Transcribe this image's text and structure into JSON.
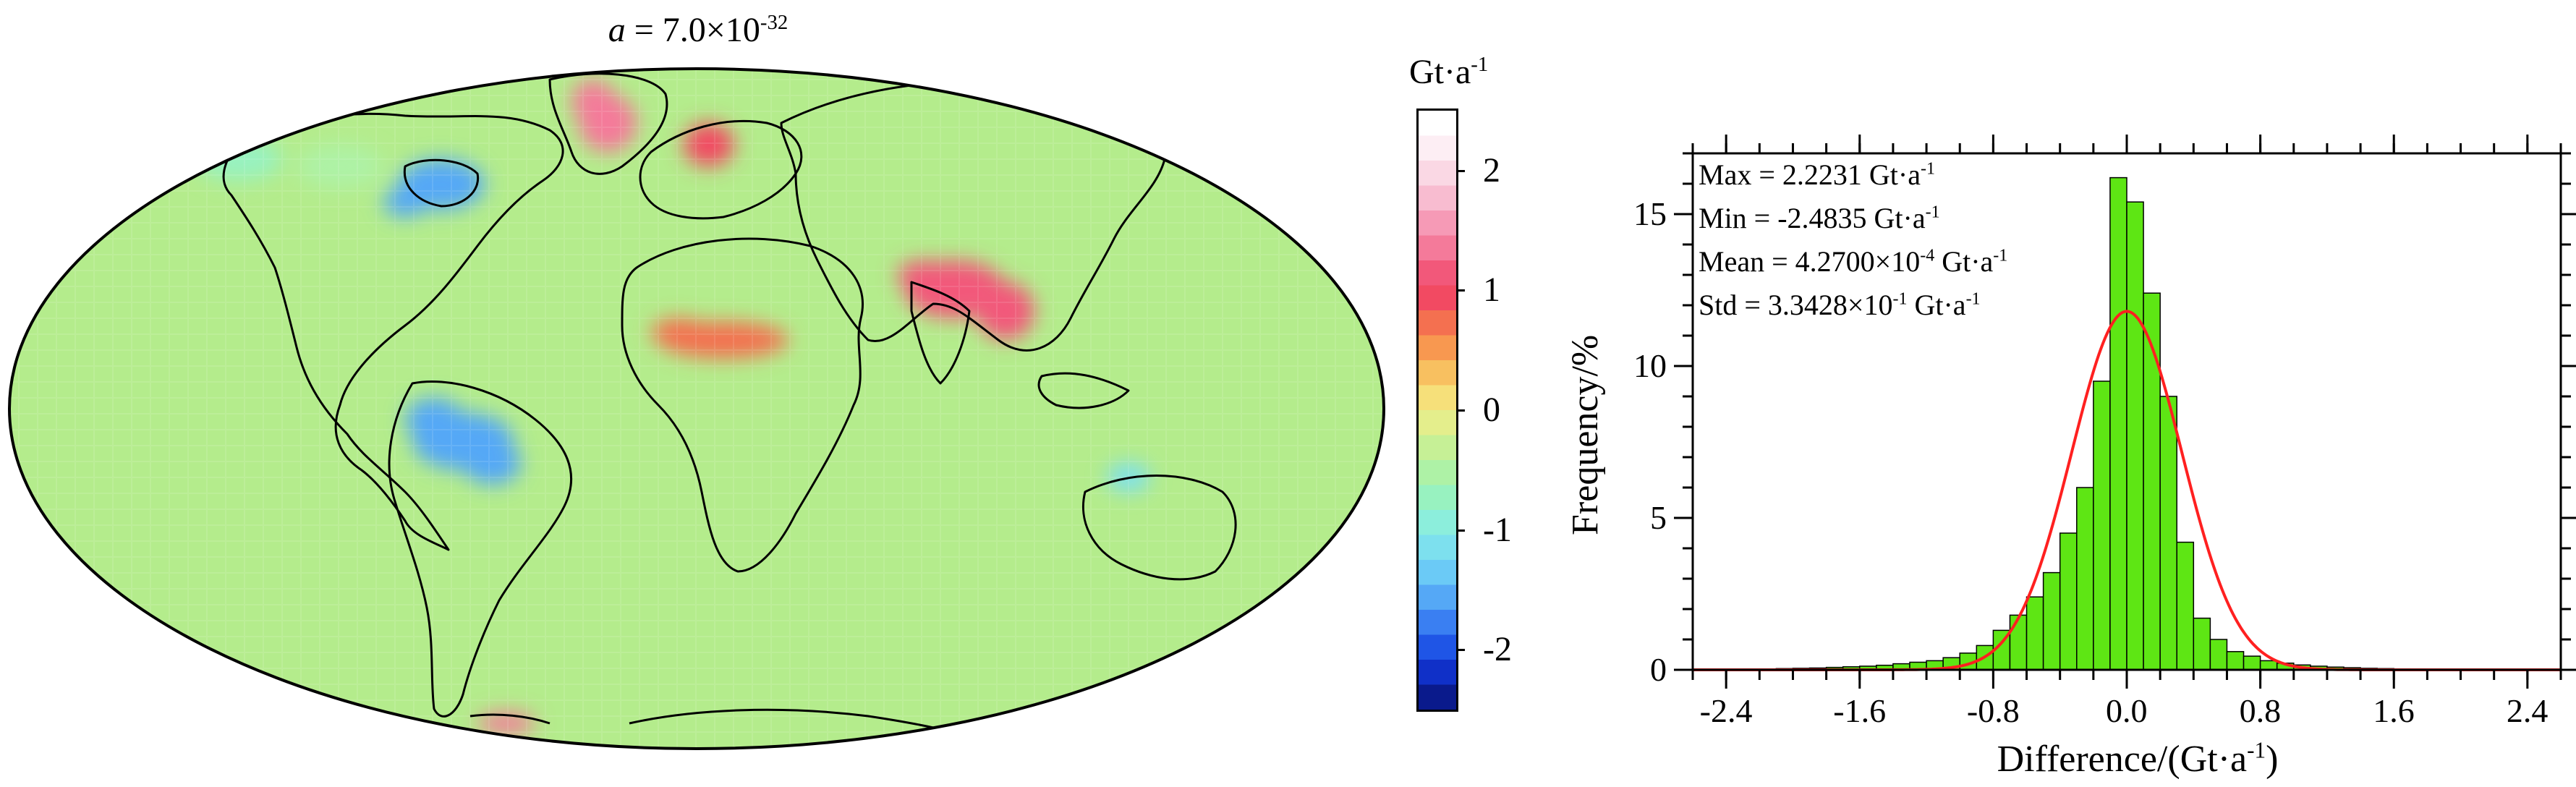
{
  "map": {
    "title_prefix": "a",
    "title_middle": " = 7.0×10",
    "title_exponent": "-32",
    "colorbar": {
      "unit_base": "Gt·a",
      "unit_exponent": "-1",
      "range": [
        -2.5,
        2.5
      ],
      "ticks": [
        "-2",
        "-1",
        "0",
        "1",
        "2"
      ],
      "tick_values": [
        -2,
        -1,
        0,
        1,
        2
      ],
      "colors": [
        "#0a1a8c",
        "#1030c8",
        "#1f55e6",
        "#3a7ff2",
        "#55a8f6",
        "#6bcaf6",
        "#7de0ee",
        "#8ceedc",
        "#98f2c0",
        "#aef2a6",
        "#c6f096",
        "#e4ee8c",
        "#f6e07a",
        "#f8c060",
        "#f89850",
        "#f47050",
        "#f24a62",
        "#f2587a",
        "#f47a9a",
        "#f69ab6",
        "#f8bcd0",
        "#fad8e4",
        "#fdeef4",
        "#ffffff"
      ]
    },
    "background_color": "#b4ec8c",
    "anomalies": [
      {
        "region": "amazon",
        "value": -1.5
      },
      {
        "region": "hudson-bay",
        "value": -1.6
      },
      {
        "region": "alaska",
        "value": -0.7
      },
      {
        "region": "canada-west",
        "value": -0.6
      },
      {
        "region": "greenland-south",
        "value": 1.4
      },
      {
        "region": "scandinavia",
        "value": 1.0
      },
      {
        "region": "sahel",
        "value": 0.8
      },
      {
        "region": "india-himalaya",
        "value": 1.1
      },
      {
        "region": "northwest-australia",
        "value": -1.2
      },
      {
        "region": "patagonia",
        "value": 1.3
      }
    ]
  },
  "chart_data": {
    "type": "bar",
    "xlabel_base": "Difference/(Gt·a",
    "xlabel_exponent": "-1",
    "xlabel_suffix": ")",
    "ylabel": "Frequency/%",
    "xlim": [
      -2.6,
      2.6
    ],
    "ylim": [
      0,
      17
    ],
    "x_ticks": [
      "-2.4",
      "-1.6",
      "-0.8",
      "0.0",
      "0.8",
      "1.6",
      "2.4"
    ],
    "x_tick_values": [
      -2.4,
      -1.6,
      -0.8,
      0.0,
      0.8,
      1.6,
      2.4
    ],
    "y_ticks": [
      "0",
      "5",
      "10",
      "15"
    ],
    "y_tick_values": [
      0,
      5,
      10,
      15
    ],
    "bin_width": 0.1,
    "bin_centers": [
      -2.45,
      -2.35,
      -2.25,
      -2.15,
      -2.05,
      -1.95,
      -1.85,
      -1.75,
      -1.65,
      -1.55,
      -1.45,
      -1.35,
      -1.25,
      -1.15,
      -1.05,
      -0.95,
      -0.85,
      -0.75,
      -0.65,
      -0.55,
      -0.45,
      -0.35,
      -0.25,
      -0.15,
      -0.05,
      0.05,
      0.15,
      0.25,
      0.35,
      0.45,
      0.55,
      0.65,
      0.75,
      0.85,
      0.95,
      1.05,
      1.15,
      1.25,
      1.35,
      1.45,
      1.55,
      1.65,
      1.75,
      1.85,
      1.95,
      2.05,
      2.15
    ],
    "values": [
      0.02,
      0.02,
      0.03,
      0.03,
      0.04,
      0.05,
      0.06,
      0.08,
      0.1,
      0.12,
      0.15,
      0.2,
      0.25,
      0.3,
      0.4,
      0.55,
      0.8,
      1.3,
      1.8,
      2.4,
      3.2,
      4.5,
      6.0,
      9.5,
      16.2,
      15.4,
      12.4,
      9.0,
      4.2,
      1.7,
      1.0,
      0.6,
      0.45,
      0.3,
      0.22,
      0.16,
      0.12,
      0.09,
      0.07,
      0.05,
      0.04,
      0.03,
      0.03,
      0.02,
      0.02,
      0.02,
      0.01
    ],
    "fit": {
      "type": "normal",
      "mean": 0.0,
      "peak": 11.8,
      "sigma": 0.33
    },
    "bar_color": "#5ee614",
    "fit_color": "#ff2020",
    "stats": {
      "max_label": "Max = 2.2231 Gt·a",
      "min_label": "Min = -2.4835 Gt·a",
      "mean_label": "Mean = 4.2700×10",
      "mean_exponent": "-4",
      "std_label": "Std = 3.3428×10",
      "std_exponent": "-1",
      "unit_suffix": " Gt·a",
      "unit_exponent": "-1"
    }
  }
}
